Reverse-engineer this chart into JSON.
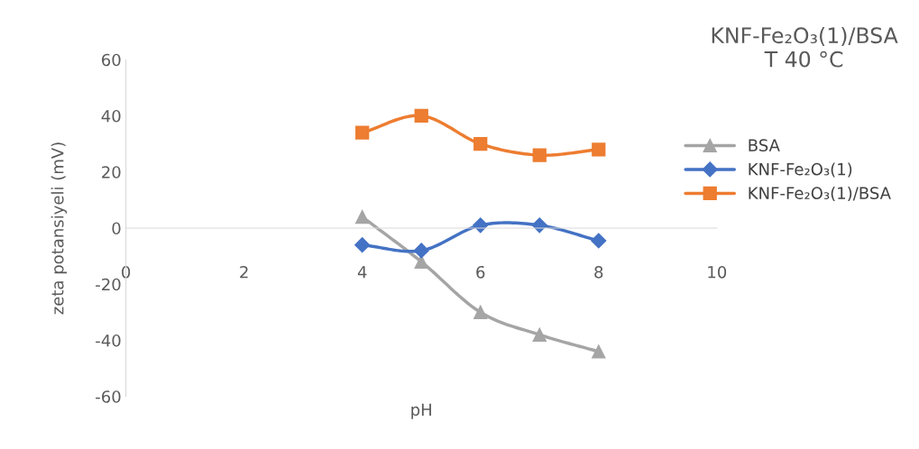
{
  "chart_data": {
    "type": "line",
    "title": "KNF-Fe₂O₃(1)/BSA\nT 40 °C",
    "xlabel": "pH",
    "ylabel": "zeta potansiyeli (mV)",
    "x": [
      4,
      5,
      6,
      7,
      8
    ],
    "series": [
      {
        "name": "BSA",
        "color": "#a5a5a5",
        "marker": "triangle",
        "values": [
          4,
          -12,
          -30,
          -38,
          -44
        ]
      },
      {
        "name": "KNF-Fe₂O₃(1)",
        "color": "#4472c4",
        "marker": "diamond",
        "values": [
          -6,
          -8,
          1,
          1,
          -4.5
        ]
      },
      {
        "name": "KNF-Fe₂O₃(1)/BSA",
        "color": "#ed7d31",
        "marker": "square",
        "values": [
          34,
          40,
          30,
          26,
          28
        ]
      }
    ],
    "xlim": [
      0,
      10
    ],
    "xticks": [
      0,
      2,
      4,
      6,
      8,
      10
    ],
    "ylim": [
      -60,
      60
    ],
    "yticks": [
      -60,
      -40,
      -20,
      0,
      20,
      40,
      60
    ],
    "grid": false,
    "legend": "right",
    "line_style": "solid"
  }
}
